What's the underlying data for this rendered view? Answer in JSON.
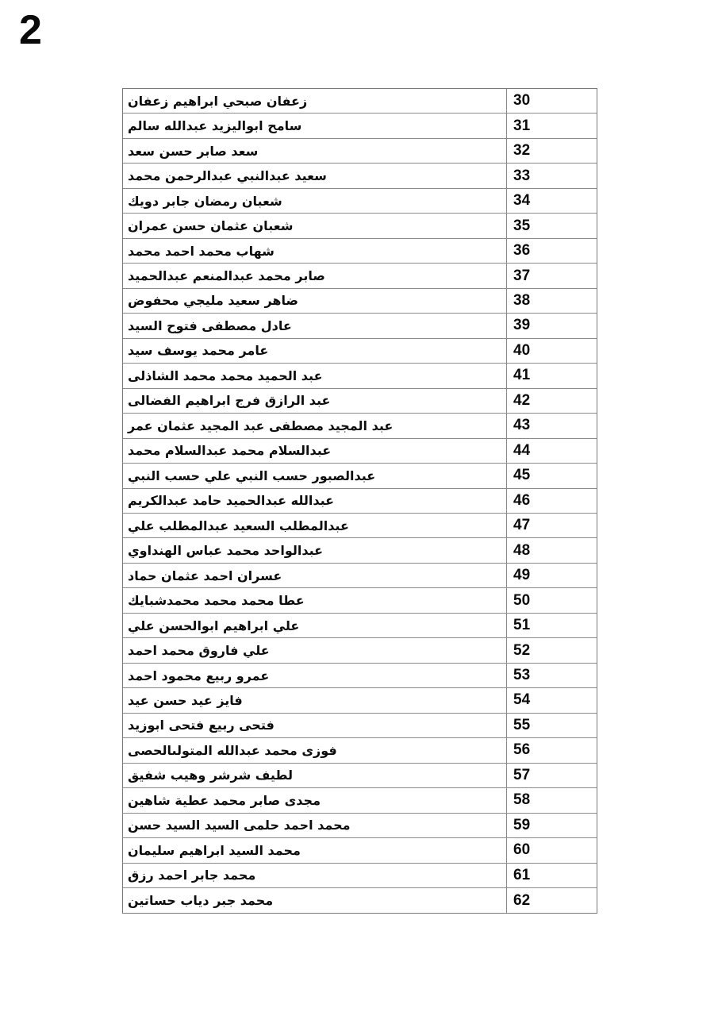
{
  "page": {
    "number": "2"
  },
  "table": {
    "rows": [
      {
        "num": "30",
        "name": "زعفان صبحي ابراهيم زعفان"
      },
      {
        "num": "31",
        "name": "سامح ابواليزيد عبدالله سالم"
      },
      {
        "num": "32",
        "name": "سعد صابر حسن سعد"
      },
      {
        "num": "33",
        "name": "سعيد عبدالنبي عبدالرحمن محمد"
      },
      {
        "num": "34",
        "name": "شعبان رمضان جابر دويك"
      },
      {
        "num": "35",
        "name": "شعبان عثمان حسن عمران"
      },
      {
        "num": "36",
        "name": "شهاب محمد احمد محمد"
      },
      {
        "num": "37",
        "name": "صابر محمد عبدالمنعم عبدالحميد"
      },
      {
        "num": "38",
        "name": "ضاهر سعيد مليجي محفوض"
      },
      {
        "num": "39",
        "name": "عادل مصطفى فتوح السيد"
      },
      {
        "num": "40",
        "name": "عامر محمد يوسف سيد"
      },
      {
        "num": "41",
        "name": "عبد الحميد محمد محمد الشاذلى"
      },
      {
        "num": "42",
        "name": "عبد الرازق فرج ابراهيم الفضالى"
      },
      {
        "num": "43",
        "name": "عبد المجيد مصطفى عبد المجيد عثمان عمر"
      },
      {
        "num": "44",
        "name": "عبدالسلام محمد عبدالسلام محمد"
      },
      {
        "num": "45",
        "name": "عبدالصبور حسب النبي علي حسب النبي"
      },
      {
        "num": "46",
        "name": "عبدالله عبدالحميد حامد عبدالكريم"
      },
      {
        "num": "47",
        "name": "عبدالمطلب السعيد عبدالمطلب علي"
      },
      {
        "num": "48",
        "name": "عبدالواحد محمد عباس الهنداوي"
      },
      {
        "num": "49",
        "name": "عسران احمد عثمان حماد"
      },
      {
        "num": "50",
        "name": "عطا محمد محمد محمدشبايك"
      },
      {
        "num": "51",
        "name": "علي ابراهيم ابوالحسن علي"
      },
      {
        "num": "52",
        "name": "علي فاروق محمد احمد"
      },
      {
        "num": "53",
        "name": "عمرو ربيع محمود احمد"
      },
      {
        "num": "54",
        "name": "فايز عيد حسن عيد"
      },
      {
        "num": "55",
        "name": "فتحى ربيع فتحى ابوزيد"
      },
      {
        "num": "56",
        "name": "فوزى محمد عبدالله المتولىالحصى"
      },
      {
        "num": "57",
        "name": "لطيف شرشر وهيب شفيق"
      },
      {
        "num": "58",
        "name": "مجدى صابر محمد عطية شاهين"
      },
      {
        "num": "59",
        "name": "محمد احمد حلمى السيد السيد حسن"
      },
      {
        "num": "60",
        "name": "محمد السيد ابراهيم سليمان"
      },
      {
        "num": "61",
        "name": "محمد جابر احمد رزق"
      },
      {
        "num": "62",
        "name": "محمد جبر دياب حساتين"
      }
    ]
  }
}
